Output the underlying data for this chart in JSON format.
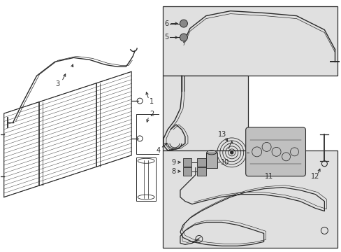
{
  "bg_color": "#ffffff",
  "line_color": "#2a2a2a",
  "box_bg": "#e0e0e0",
  "fig_width": 4.89,
  "fig_height": 3.6,
  "dpi": 100,
  "font_size": 7.0,
  "lw": 0.85
}
